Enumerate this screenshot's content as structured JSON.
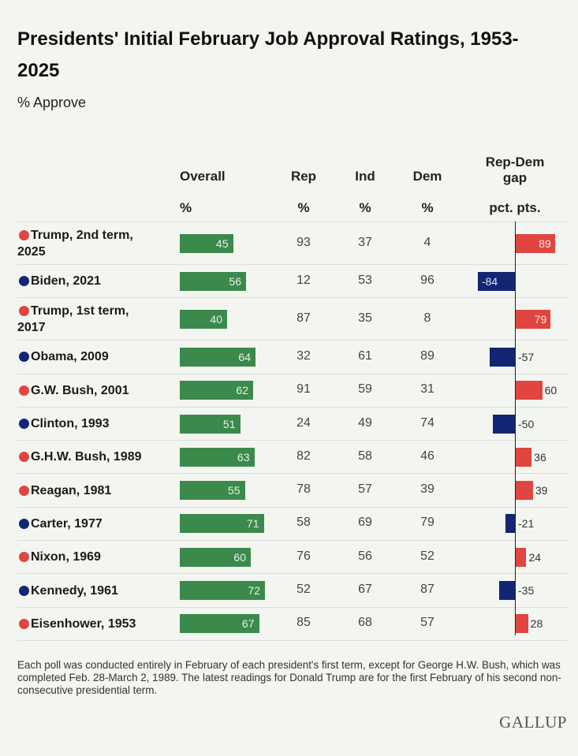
{
  "title": "Presidents' Initial February Job Approval Ratings, 1953-2025",
  "title_line1": "Presidents' Initial February Job Approval Ratings, 1953-",
  "title_line2": "2025",
  "subtitle": "% Approve",
  "headers": {
    "overall": "Overall",
    "overall_unit": "%",
    "rep": "Rep",
    "rep_unit": "%",
    "ind": "Ind",
    "ind_unit": "%",
    "dem": "Dem",
    "dem_unit": "%",
    "gap": "Rep-Dem gap",
    "gap_line1": "Rep-Dem",
    "gap_line2": "gap",
    "gap_unit": "pct. pts."
  },
  "colors": {
    "republican": "#e0453f",
    "democrat": "#122673",
    "overall_bar": "#3b8a4c"
  },
  "chart_data": {
    "type": "table",
    "rows": [
      {
        "president": "Trump, 2nd term, 2025",
        "line1": "Trump, 2nd term,",
        "line2": "2025",
        "party": "republican",
        "overall": 45,
        "rep": 93,
        "ind": 37,
        "dem": 4,
        "gap": 89
      },
      {
        "president": "Biden, 2021",
        "party": "democrat",
        "overall": 56,
        "rep": 12,
        "ind": 53,
        "dem": 96,
        "gap": -84
      },
      {
        "president": "Trump, 1st term, 2017",
        "line1": "Trump, 1st term,",
        "line2": "2017",
        "party": "republican",
        "overall": 40,
        "rep": 87,
        "ind": 35,
        "dem": 8,
        "gap": 79
      },
      {
        "president": "Obama, 2009",
        "party": "democrat",
        "overall": 64,
        "rep": 32,
        "ind": 61,
        "dem": 89,
        "gap": -57
      },
      {
        "president": "G.W. Bush, 2001",
        "party": "republican",
        "overall": 62,
        "rep": 91,
        "ind": 59,
        "dem": 31,
        "gap": 60
      },
      {
        "president": "Clinton, 1993",
        "party": "democrat",
        "overall": 51,
        "rep": 24,
        "ind": 49,
        "dem": 74,
        "gap": -50
      },
      {
        "president": "G.H.W. Bush, 1989",
        "party": "republican",
        "overall": 63,
        "rep": 82,
        "ind": 58,
        "dem": 46,
        "gap": 36
      },
      {
        "president": "Reagan, 1981",
        "party": "republican",
        "overall": 55,
        "rep": 78,
        "ind": 57,
        "dem": 39,
        "gap": 39
      },
      {
        "president": "Carter, 1977",
        "party": "democrat",
        "overall": 71,
        "rep": 58,
        "ind": 69,
        "dem": 79,
        "gap": -21
      },
      {
        "president": "Nixon, 1969",
        "party": "republican",
        "overall": 60,
        "rep": 76,
        "ind": 56,
        "dem": 52,
        "gap": 24
      },
      {
        "president": "Kennedy, 1961",
        "party": "democrat",
        "overall": 72,
        "rep": 52,
        "ind": 67,
        "dem": 87,
        "gap": -35
      },
      {
        "president": "Eisenhower, 1953",
        "party": "republican",
        "overall": 67,
        "rep": 85,
        "ind": 68,
        "dem": 57,
        "gap": 28
      }
    ]
  },
  "footnote": "Each poll was conducted entirely in February of each president's first term, except for George H.W. Bush, which was completed Feb. 28-March 2, 1989. The latest readings for Donald Trump are for the first February of his second non-consecutive presidential term.",
  "logo": "GALLUP"
}
